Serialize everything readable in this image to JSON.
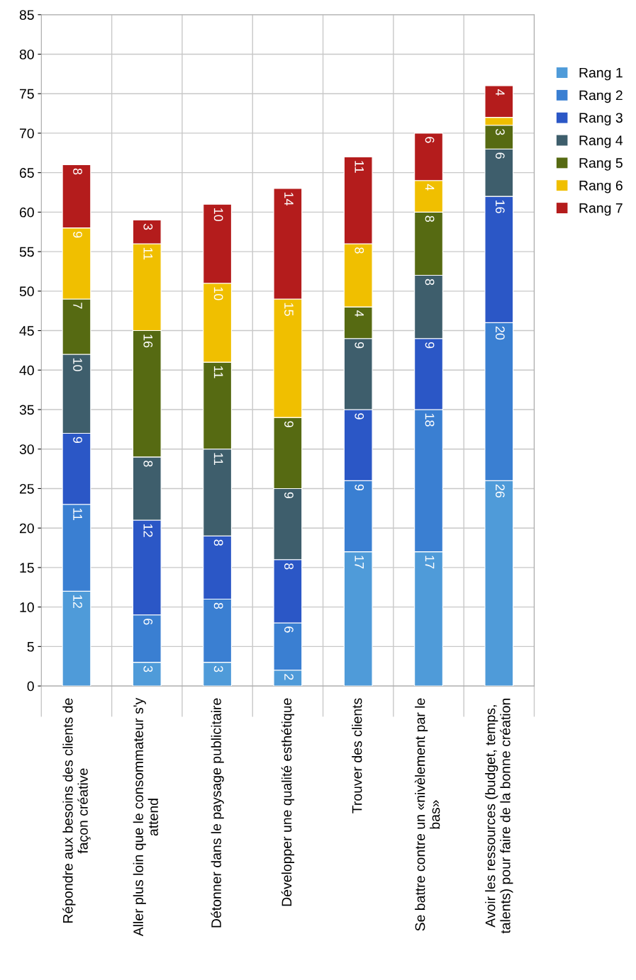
{
  "chart_data": {
    "type": "bar",
    "stacked": true,
    "categories": [
      "Répondre aux besoins des clients de\nfaçon créative",
      "Aller plus loin que le consommateur s'y\nattend",
      "Détonner dans le paysage publicitaire",
      "Développer une qualité esthétique",
      "Trouver des clients",
      "Se battre contre un «nivèlement par le\nbas»",
      "Avoir les ressources (budget, temps,\ntalents) pour faire de la bonne création"
    ],
    "series": [
      {
        "name": "Rang 1",
        "color": "#4f9bd9",
        "values": [
          12,
          3,
          3,
          2,
          17,
          17,
          26
        ]
      },
      {
        "name": "Rang 2",
        "color": "#3a7fd2",
        "values": [
          11,
          6,
          8,
          6,
          9,
          18,
          20
        ]
      },
      {
        "name": "Rang 3",
        "color": "#2b57c6",
        "values": [
          9,
          12,
          8,
          8,
          9,
          9,
          16
        ]
      },
      {
        "name": "Rang 4",
        "color": "#3e5e6c",
        "values": [
          10,
          8,
          11,
          9,
          9,
          8,
          6
        ]
      },
      {
        "name": "Rang 5",
        "color": "#566a12",
        "values": [
          7,
          16,
          11,
          9,
          4,
          8,
          3
        ]
      },
      {
        "name": "Rang 6",
        "color": "#f0bf00",
        "values": [
          9,
          11,
          10,
          15,
          8,
          4,
          1
        ],
        "value_labels": [
          "9",
          "11",
          "10",
          "15",
          "8",
          "4",
          null
        ]
      },
      {
        "name": "Rang 7",
        "color": "#b41c1c",
        "values": [
          8,
          3,
          10,
          14,
          11,
          6,
          4
        ]
      }
    ],
    "ylim": [
      0,
      85
    ],
    "yticks": [
      0,
      5,
      10,
      15,
      20,
      25,
      30,
      35,
      40,
      45,
      50,
      55,
      60,
      65,
      70,
      75,
      80,
      85
    ],
    "grid": true,
    "legend": "right",
    "data_labels": true
  }
}
